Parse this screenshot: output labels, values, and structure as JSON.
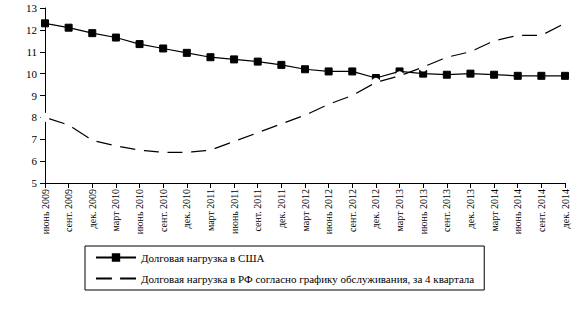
{
  "chart_data": {
    "type": "line",
    "categories": [
      "июнь 2009",
      "сент. 2009",
      "дек. 2009",
      "март 2010",
      "июнь 2010",
      "сент. 2010",
      "дек. 2010",
      "март 2011",
      "июнь 2011",
      "сент. 2011",
      "дек. 2011",
      "март 2012",
      "июнь 2012",
      "сент. 2012",
      "дек. 2012",
      "март 2013",
      "июнь 2013",
      "сент. 2013",
      "дек. 2013",
      "март 2014",
      "июнь 2014",
      "сент. 2014",
      "дек. 2014"
    ],
    "series": [
      {
        "name": "Долговая нагрузка в США",
        "color": "#000000",
        "marker": "square",
        "values": [
          12.3,
          12.1,
          11.85,
          11.65,
          11.35,
          11.15,
          10.95,
          10.75,
          10.65,
          10.55,
          10.4,
          10.2,
          10.1,
          10.1,
          9.8,
          10.1,
          10.0,
          9.95,
          10.0,
          9.95,
          9.9,
          9.9,
          9.9
        ]
      },
      {
        "name": "Долговая нагрузка в РФ согласно графику обслуживания, за 4 квартала",
        "color": "#000000",
        "marker": "open_circle",
        "values": [
          8.0,
          7.65,
          6.95,
          6.7,
          6.5,
          6.4,
          6.4,
          6.5,
          6.9,
          7.3,
          7.7,
          8.1,
          8.6,
          9.0,
          9.6,
          9.9,
          10.3,
          10.75,
          11.0,
          11.5,
          11.75,
          11.75,
          12.3
        ]
      }
    ],
    "ylim": [
      5,
      13
    ],
    "yticks": [
      5,
      6,
      7,
      8,
      9,
      10,
      11,
      12,
      13
    ],
    "grid": false,
    "legend": "bottom"
  }
}
